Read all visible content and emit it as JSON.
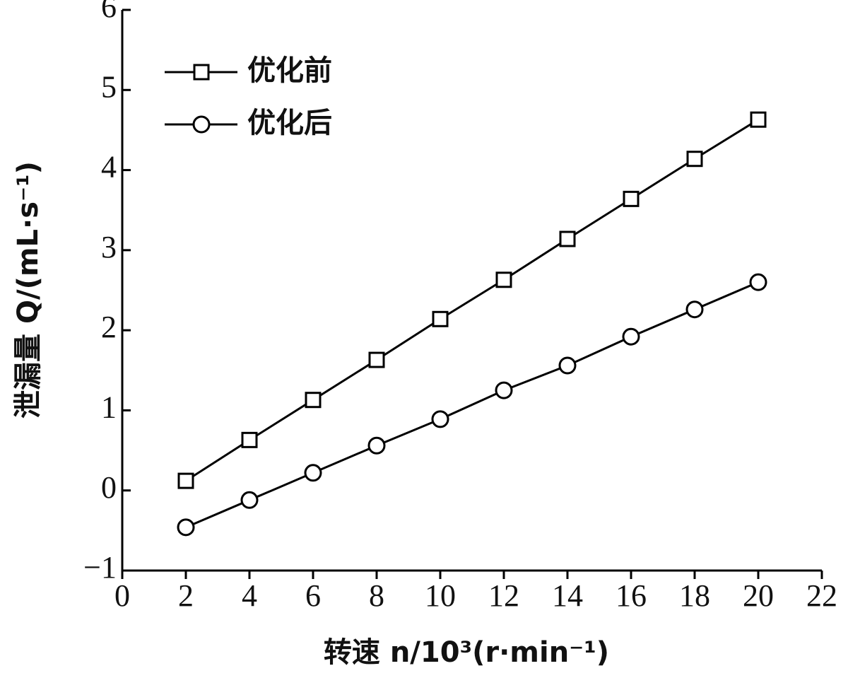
{
  "chart_data": {
    "type": "line",
    "xlabel": "转速 n/10³(r·min⁻¹)",
    "ylabel": "泄漏量 Q/(mL·s⁻¹)",
    "x": [
      2,
      4,
      6,
      8,
      10,
      12,
      14,
      16,
      18,
      20
    ],
    "series": [
      {
        "name": "优化前",
        "color": "#000000",
        "marker": "square",
        "values": [
          0.12,
          0.63,
          1.13,
          1.63,
          2.14,
          2.63,
          3.14,
          3.64,
          4.14,
          4.63
        ]
      },
      {
        "name": "优化后",
        "color": "#000000",
        "marker": "circle",
        "values": [
          -0.46,
          -0.12,
          0.22,
          0.56,
          0.89,
          1.25,
          1.56,
          1.92,
          2.26,
          2.6
        ]
      }
    ],
    "xlim": [
      0,
      22
    ],
    "xticks": [
      0,
      2,
      4,
      6,
      8,
      10,
      12,
      14,
      16,
      18,
      20,
      22
    ],
    "ylim": [
      -1,
      6
    ],
    "yticks": [
      {
        "value": -1,
        "label": "−1"
      },
      0,
      1,
      2,
      3,
      4,
      5,
      6
    ],
    "legend": "upper left",
    "grid": false
  }
}
